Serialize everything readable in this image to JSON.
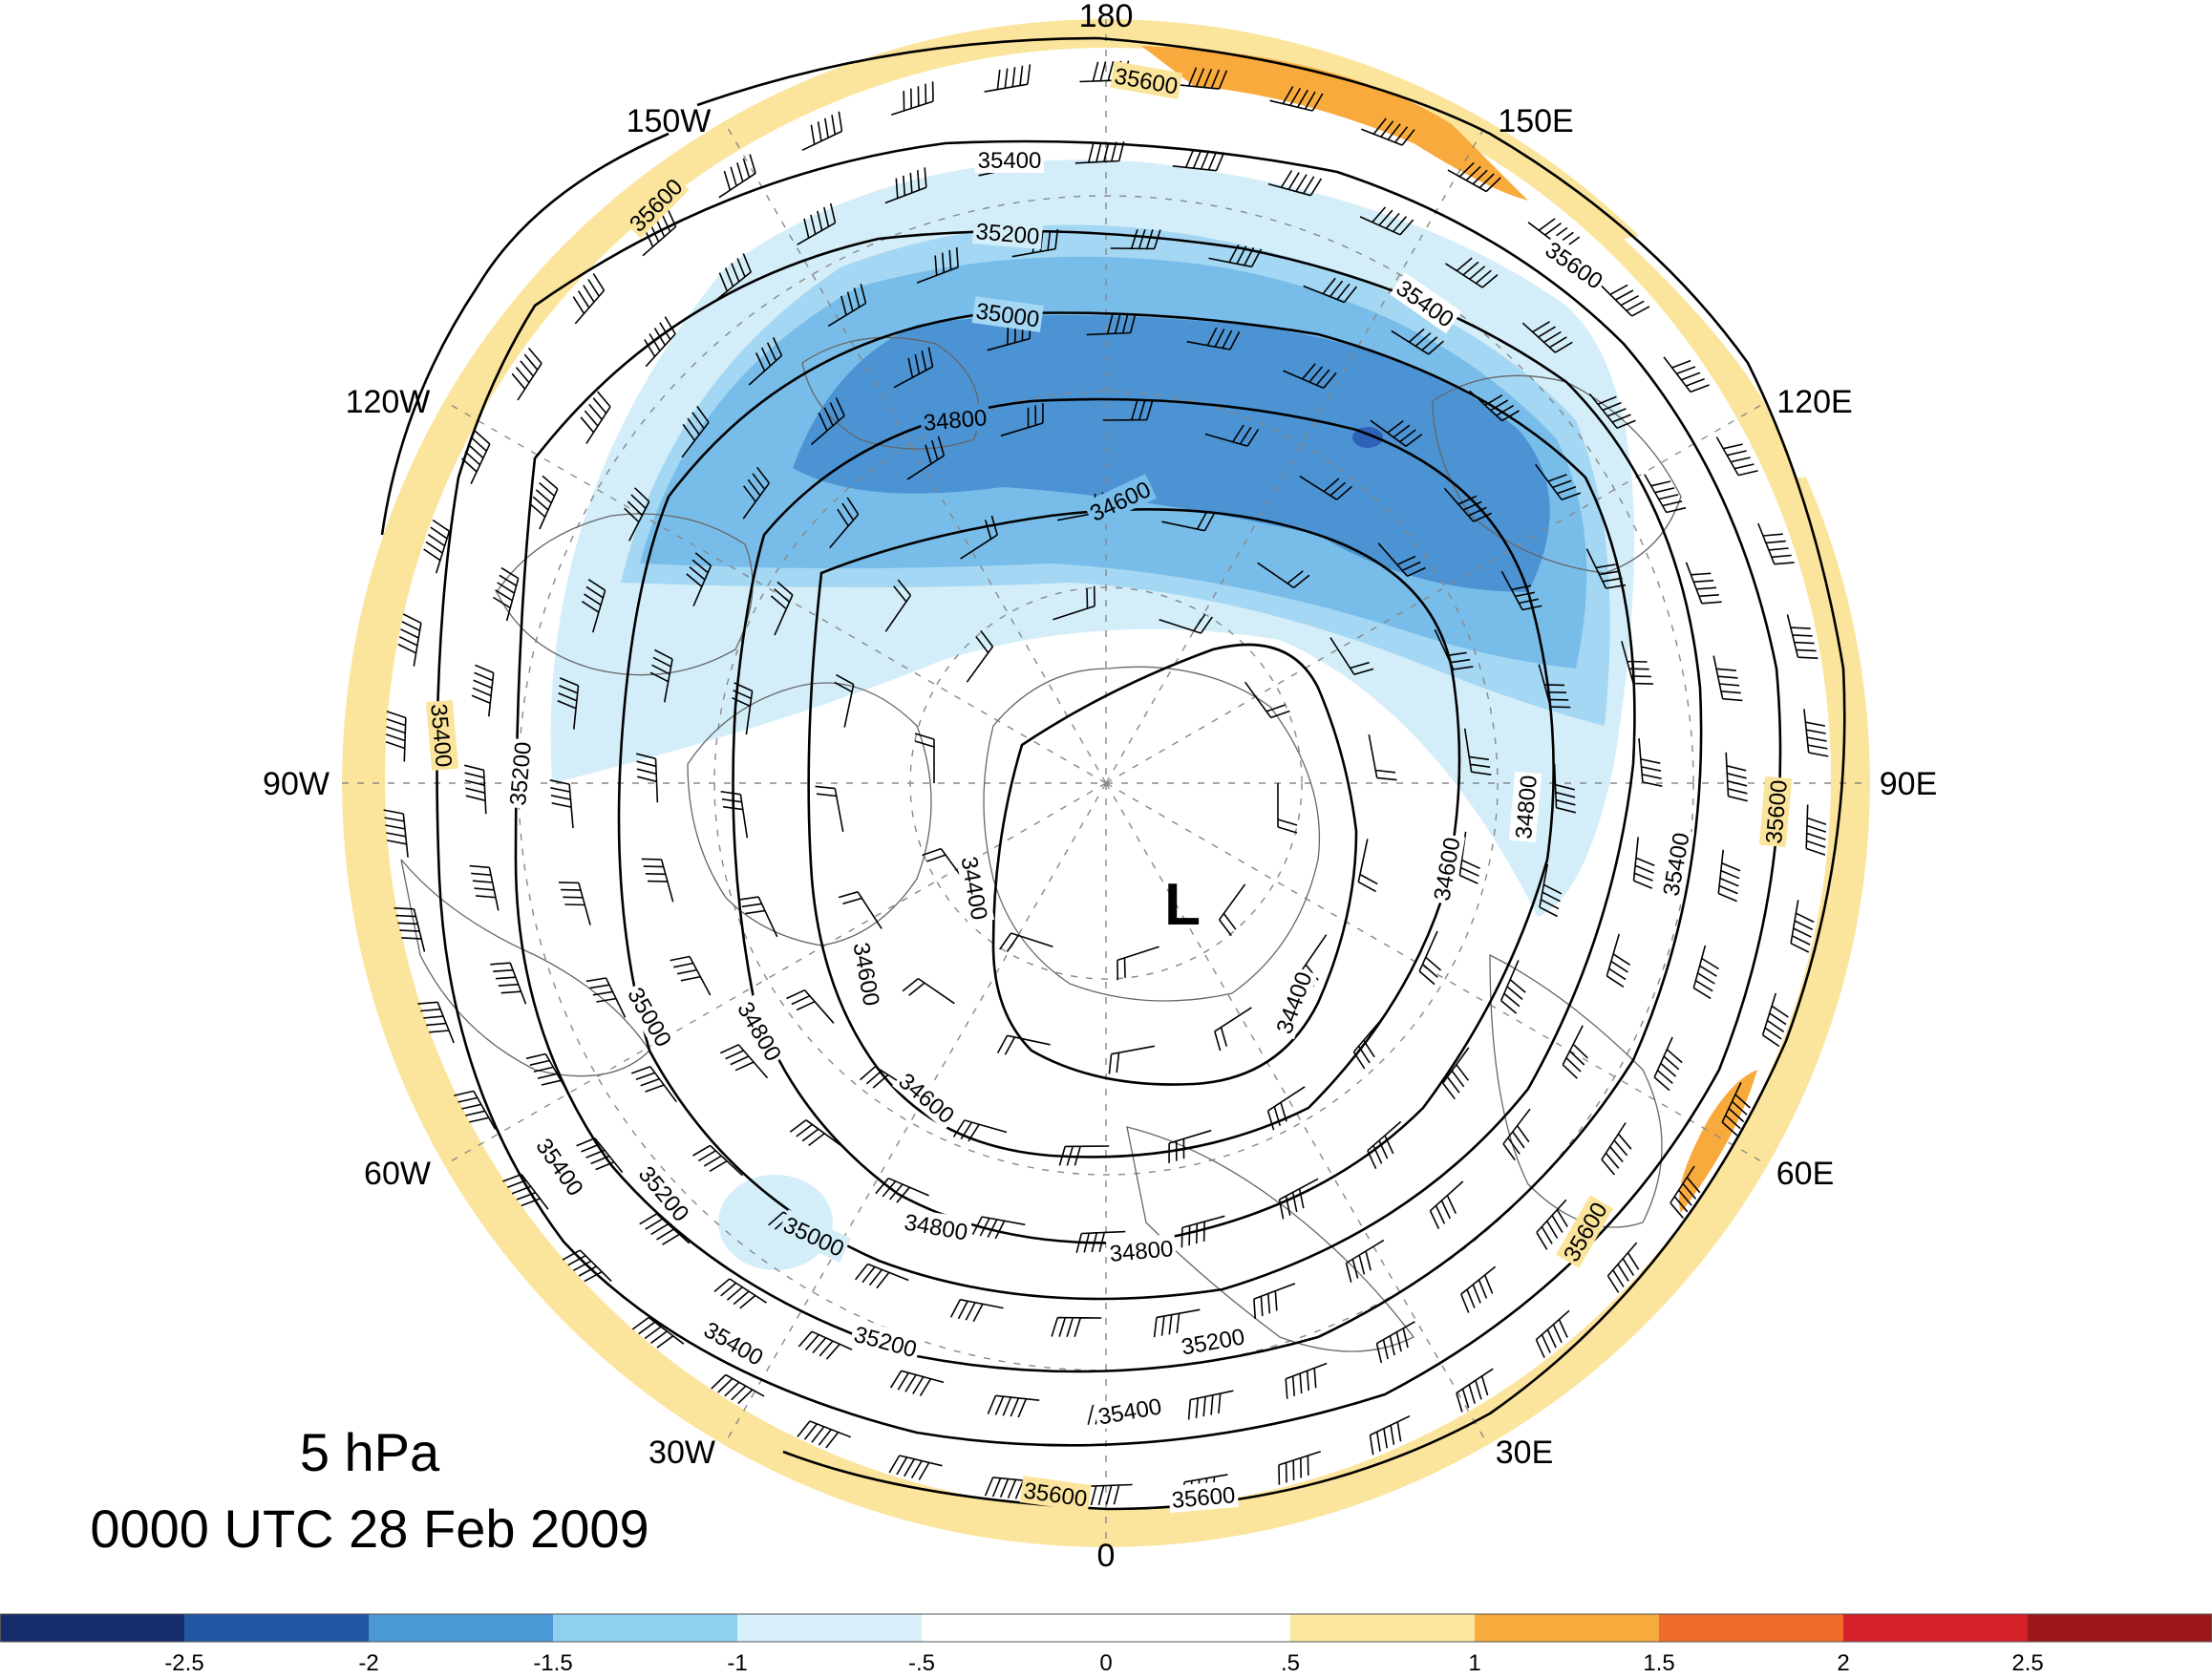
{
  "map": {
    "level": "5 hPa",
    "valid_time": "0000 UTC 28 Feb 2009",
    "low_label": "L",
    "longitude_labels": [
      "180",
      "150E",
      "120E",
      "90E",
      "60E",
      "30E",
      "0",
      "30W",
      "60W",
      "90W",
      "120W",
      "150W"
    ],
    "contour_labels": [
      "34400",
      "34600",
      "34800",
      "35000",
      "35200",
      "35400",
      "35600"
    ],
    "shading_colors": {
      "light_blue": "#d4eef9",
      "mid_blue": "#a4d7f3",
      "blue": "#78bde9",
      "dark_blue": "#4c93d3",
      "deep_blue": "#2d62b8",
      "light_yellow": "#fbe49b",
      "orange": "#f9aa3c"
    }
  },
  "colorbar": {
    "ticks": [
      "-2.5",
      "-2",
      "-1.5",
      "-1",
      "-.5",
      "0",
      ".5",
      "1",
      "1.5",
      "2",
      "2.5"
    ],
    "colors": [
      "#172c6b",
      "#2255a4",
      "#4a98d4",
      "#8fd0f1",
      "#d7f0fa",
      "#ffffff",
      "#ffffff",
      "#fbe89e",
      "#f7ab3d",
      "#ef6c2a",
      "#d42129",
      "#9b1616"
    ]
  }
}
